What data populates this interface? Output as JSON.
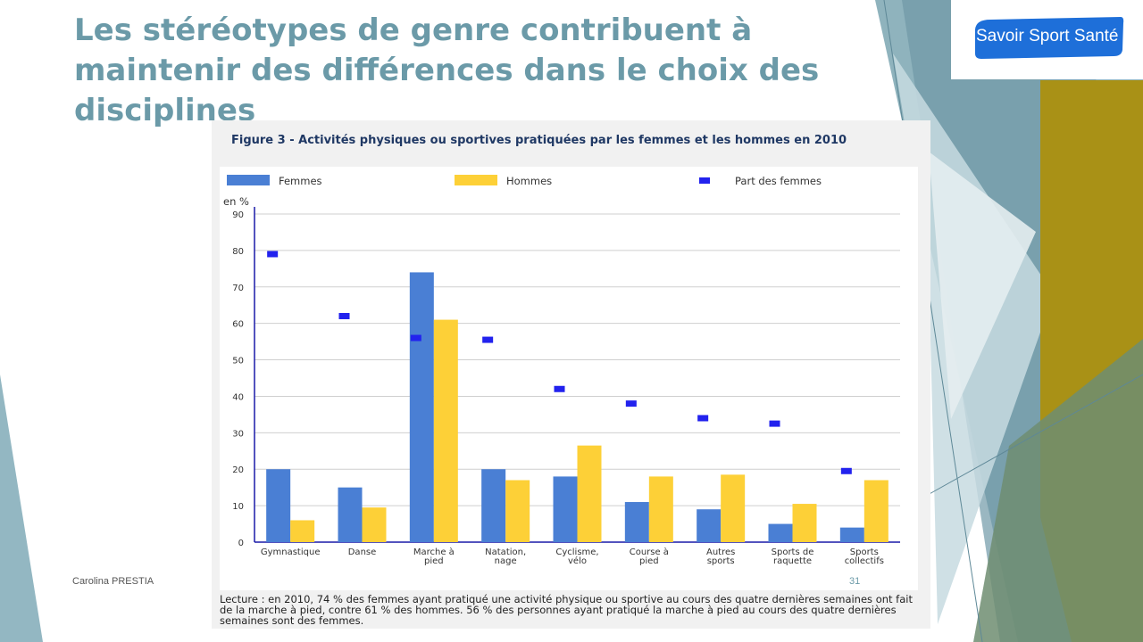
{
  "slide": {
    "title": "Les stéréotypes de genre contribuent à maintenir des différences dans le choix des disciplines",
    "logo_text": "Savoir Sport Santé",
    "author": "Carolina PRESTIA",
    "page_number": "31"
  },
  "figure": {
    "title": "Figure 3 - Activités physiques ou sportives pratiquées par les femmes et les hommes en 2010",
    "caption": "Lecture : en 2010, 74 % des femmes ayant pratiqué une activité physique ou sportive au cours des quatre dernières semaines ont fait de la marche à pied, contre 61 % des hommes. 56 % des personnes ayant pratiqué la marche à pied au cours des quatre dernières semaines sont des femmes."
  },
  "colors": {
    "title": "#6b9aa8",
    "femmes": "#4a7fd4",
    "hommes": "#fdd037",
    "part": "#2222ee"
  },
  "chart_data": {
    "type": "bar",
    "ylabel": "en %",
    "ylim": [
      0,
      90
    ],
    "yticks": [
      0,
      10,
      20,
      30,
      40,
      50,
      60,
      70,
      80,
      90
    ],
    "grid": true,
    "legend_position": "top",
    "categories": [
      [
        "Gymnastique"
      ],
      [
        "Danse"
      ],
      [
        "Marche à",
        "pied"
      ],
      [
        "Natation,",
        "nage"
      ],
      [
        "Cyclisme,",
        "vélo"
      ],
      [
        "Course à",
        "pied"
      ],
      [
        "Autres",
        "sports"
      ],
      [
        "Sports de",
        "raquette"
      ],
      [
        "Sports",
        "collectifs"
      ]
    ],
    "series": [
      {
        "name": "Femmes",
        "values": [
          20,
          15,
          74,
          20,
          18,
          11,
          9,
          5,
          4
        ]
      },
      {
        "name": "Hommes",
        "values": [
          6,
          9.5,
          61,
          17,
          26.5,
          18,
          18.5,
          10.5,
          17
        ]
      },
      {
        "name": "Part des femmes",
        "values": [
          79,
          62,
          56,
          55.5,
          42,
          38,
          34,
          32.5,
          19.5
        ]
      }
    ]
  }
}
